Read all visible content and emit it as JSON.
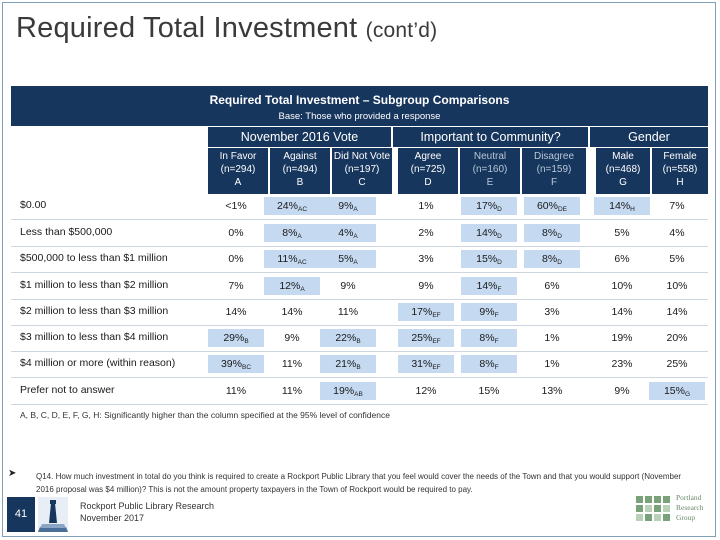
{
  "title": {
    "main": "Required Total Investment",
    "cont": "(cont’d)"
  },
  "table": {
    "title": "Required Total Investment – Subgroup Comparisons",
    "base": "Base: Those who provided a response",
    "groups": [
      "November 2016 Vote",
      "Important to Community?",
      "Gender"
    ],
    "columns": [
      {
        "name": "In Favor",
        "n": "(n=294)",
        "letter": "A"
      },
      {
        "name": "Against",
        "n": "(n=494)",
        "letter": "B"
      },
      {
        "name": "Did Not Vote",
        "n": "(n=197)",
        "letter": "C"
      },
      {
        "name": "Agree",
        "n": "(n=725)",
        "letter": "D"
      },
      {
        "name": "Neutral",
        "n": "(n=160)",
        "letter": "E"
      },
      {
        "name": "Disagree",
        "n": "(n=159)",
        "letter": "F"
      },
      {
        "name": "Male",
        "n": "(n=468)",
        "letter": "G"
      },
      {
        "name": "Female",
        "n": "(n=558)",
        "letter": "H"
      }
    ],
    "rows": [
      {
        "label": "$0.00",
        "cells": [
          [
            "<1%",
            ""
          ],
          [
            "24%",
            "AC"
          ],
          [
            "9%",
            "A"
          ],
          [
            "1%",
            ""
          ],
          [
            "17%",
            "D"
          ],
          [
            "60%",
            "DE"
          ],
          [
            "14%",
            "H"
          ],
          [
            "7%",
            ""
          ]
        ]
      },
      {
        "label": "Less than $500,000",
        "cells": [
          [
            "0%",
            ""
          ],
          [
            "8%",
            "A"
          ],
          [
            "4%",
            "A"
          ],
          [
            "2%",
            ""
          ],
          [
            "14%",
            "D"
          ],
          [
            "8%",
            "D"
          ],
          [
            "5%",
            ""
          ],
          [
            "4%",
            ""
          ]
        ]
      },
      {
        "label": "$500,000 to less than $1 million",
        "cells": [
          [
            "0%",
            ""
          ],
          [
            "11%",
            "AC"
          ],
          [
            "5%",
            "A"
          ],
          [
            "3%",
            ""
          ],
          [
            "15%",
            "D"
          ],
          [
            "8%",
            "D"
          ],
          [
            "6%",
            ""
          ],
          [
            "5%",
            ""
          ]
        ]
      },
      {
        "label": "$1 million to less than $2 million",
        "cells": [
          [
            "7%",
            ""
          ],
          [
            "12%",
            "A"
          ],
          [
            "9%",
            ""
          ],
          [
            "9%",
            ""
          ],
          [
            "14%",
            "F"
          ],
          [
            "6%",
            ""
          ],
          [
            "10%",
            ""
          ],
          [
            "10%",
            ""
          ]
        ]
      },
      {
        "label": "$2 million to less than $3 million",
        "cells": [
          [
            "14%",
            ""
          ],
          [
            "14%",
            ""
          ],
          [
            "11%",
            ""
          ],
          [
            "17%",
            "EF"
          ],
          [
            "9%",
            "F"
          ],
          [
            "3%",
            ""
          ],
          [
            "14%",
            ""
          ],
          [
            "14%",
            ""
          ]
        ]
      },
      {
        "label": "$3 million to less than $4 million",
        "cells": [
          [
            "29%",
            "B"
          ],
          [
            "9%",
            ""
          ],
          [
            "22%",
            "B"
          ],
          [
            "25%",
            "EF"
          ],
          [
            "8%",
            "F"
          ],
          [
            "1%",
            ""
          ],
          [
            "19%",
            ""
          ],
          [
            "20%",
            ""
          ]
        ]
      },
      {
        "label": "$4 million or more (within reason)",
        "cells": [
          [
            "39%",
            "BC"
          ],
          [
            "11%",
            ""
          ],
          [
            "21%",
            "B"
          ],
          [
            "31%",
            "EF"
          ],
          [
            "8%",
            "F"
          ],
          [
            "1%",
            ""
          ],
          [
            "23%",
            ""
          ],
          [
            "25%",
            ""
          ]
        ]
      },
      {
        "label": "Prefer not to answer",
        "cells": [
          [
            "11%",
            ""
          ],
          [
            "11%",
            ""
          ],
          [
            "19%",
            "AB"
          ],
          [
            "12%",
            ""
          ],
          [
            "15%",
            ""
          ],
          [
            "13%",
            ""
          ],
          [
            "9%",
            ""
          ],
          [
            "15%",
            "G"
          ]
        ]
      }
    ],
    "note": "A, B, C, D, E, F, G, H: Significantly higher than the column specified at the 95% level of confidence"
  },
  "question": "Q14. How much investment in total do you think is required to create a Rockport Public Library that you feel would cover the needs of the Town and that you would support (November 2016 proposal was $4 million)? This is not the amount property taxpayers in the Town of Rockport would be required to pay.",
  "footer": {
    "page_number": "41",
    "source_line1": "Rockport Public Library Research",
    "source_line2": "November 2017",
    "logo_text": [
      "Portland",
      "Research",
      "Group"
    ]
  },
  "colors": {
    "header_bg": "#17365d",
    "highlight": "#c5d9f1",
    "frame": "#7fa0b8"
  }
}
